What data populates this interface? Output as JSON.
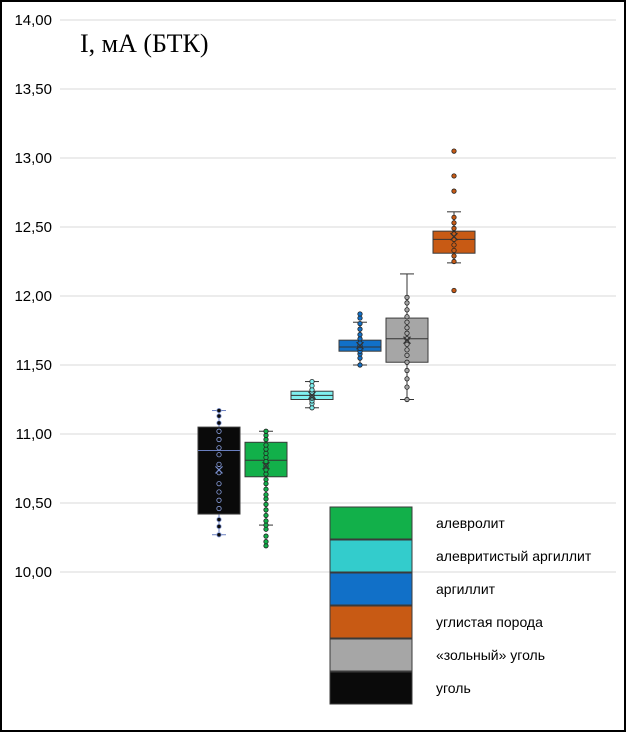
{
  "chart_data": {
    "type": "box",
    "title": "I, мА (БТК)",
    "ylim": [
      10.0,
      14.0
    ],
    "yticks": [
      "10,00",
      "10,50",
      "11,00",
      "11,50",
      "12,00",
      "12,50",
      "13,00",
      "13,50",
      "14,00"
    ],
    "grid": true,
    "legend_position": "bottom-right",
    "series": [
      {
        "name": "уголь",
        "color": "#0a0a0a",
        "mean_marker": "#7a8fd0",
        "line": "#6a7fc0",
        "whisker_low": 10.27,
        "q1": 10.42,
        "median": 10.88,
        "q3": 11.05,
        "whisker_high": 11.17,
        "mean": 10.74,
        "points": [
          10.27,
          10.33,
          10.38,
          10.46,
          10.52,
          10.58,
          10.64,
          10.72,
          10.78,
          10.85,
          10.9,
          10.96,
          11.02,
          11.08,
          11.13,
          11.17
        ]
      },
      {
        "name": "алевролит",
        "color": "#12b04a",
        "mean_marker": "#333333",
        "line": "#333333",
        "whisker_low": 10.34,
        "q1": 10.69,
        "median": 10.81,
        "q3": 10.94,
        "whisker_high": 11.02,
        "mean": 10.77,
        "points": [
          10.19,
          10.22,
          10.26,
          10.31,
          10.34,
          10.37,
          10.41,
          10.45,
          10.49,
          10.53,
          10.56,
          10.6,
          10.64,
          10.67,
          10.71,
          10.74,
          10.77,
          10.8,
          10.83,
          10.86,
          10.89,
          10.92,
          10.96,
          10.99,
          11.02
        ]
      },
      {
        "name": "алевритистый аргиллит",
        "color": "#7ff0f0",
        "mean_marker": "#333333",
        "line": "#333333",
        "whisker_low": 11.19,
        "q1": 11.25,
        "median": 11.28,
        "q3": 11.31,
        "whisker_high": 11.38,
        "mean": 11.28,
        "points": [
          11.19,
          11.22,
          11.24,
          11.26,
          11.27,
          11.28,
          11.29,
          11.3,
          11.32,
          11.35,
          11.38
        ]
      },
      {
        "name": "аргиллит",
        "color": "#1170c8",
        "mean_marker": "#333333",
        "line": "#333333",
        "whisker_low": 11.5,
        "q1": 11.6,
        "median": 11.63,
        "q3": 11.68,
        "whisker_high": 11.81,
        "mean": 11.64,
        "points": [
          11.5,
          11.55,
          11.58,
          11.6,
          11.62,
          11.64,
          11.66,
          11.69,
          11.72,
          11.76,
          11.8,
          11.84,
          11.87
        ]
      },
      {
        "name": "«зольный» уголь",
        "color": "#a6a6a6",
        "mean_marker": "#333333",
        "line": "#333333",
        "whisker_low": 11.25,
        "q1": 11.52,
        "median": 11.69,
        "q3": 11.84,
        "whisker_high": 12.16,
        "mean": 11.68,
        "points": [
          11.25,
          11.34,
          11.4,
          11.46,
          11.52,
          11.57,
          11.61,
          11.65,
          11.69,
          11.73,
          11.77,
          11.81,
          11.85,
          11.9,
          11.95,
          11.99
        ]
      },
      {
        "name": "углистая порода",
        "color": "#c85a14",
        "mean_marker": "#333333",
        "line": "#333333",
        "whisker_low": 12.24,
        "q1": 12.31,
        "median": 12.41,
        "q3": 12.47,
        "whisker_high": 12.61,
        "mean": 12.43,
        "points": [
          12.04,
          12.25,
          12.29,
          12.33,
          12.37,
          12.41,
          12.45,
          12.49,
          12.53,
          12.57,
          12.76,
          12.87,
          13.05
        ]
      }
    ],
    "legend_order": [
      1,
      2,
      3,
      5,
      4,
      0
    ]
  }
}
